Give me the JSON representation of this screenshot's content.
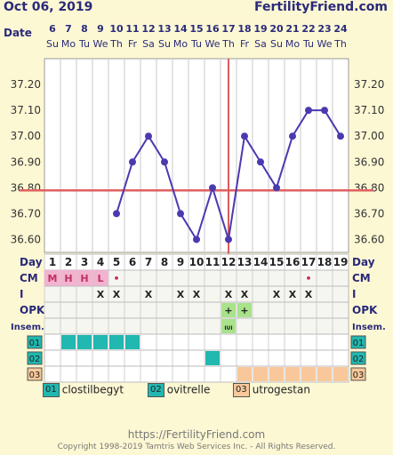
{
  "header": {
    "date": "Oct 06, 2019",
    "site": "FertilityFriend.com"
  },
  "labels": {
    "date": "Date",
    "day": "Day",
    "cm": "CM",
    "intercourse": "I",
    "opk": "OPK",
    "insem": "Insem."
  },
  "colors": {
    "line": "#4a3ab0",
    "coverline": "#e06060",
    "ovulation": "#d95c5c",
    "cm_fill": "#f2b3cf",
    "opk_fill": "#a8e28a",
    "med1": "#20b8b0",
    "med2": "#20b8b0",
    "med3": "#f8c89a"
  },
  "chart_data": {
    "type": "line",
    "dates": [
      "6",
      "7",
      "8",
      "9",
      "10",
      "11",
      "12",
      "13",
      "14",
      "15",
      "16",
      "17",
      "18",
      "19",
      "20",
      "21",
      "22",
      "23",
      "24"
    ],
    "weekdays": [
      "Su",
      "Mo",
      "Tu",
      "We",
      "Th",
      "Fr",
      "Sa",
      "Su",
      "Mo",
      "Tu",
      "We",
      "Th",
      "Fr",
      "Sa",
      "Su",
      "Mo",
      "Tu",
      "We",
      "Th"
    ],
    "days": [
      "1",
      "2",
      "3",
      "4",
      "5",
      "6",
      "7",
      "8",
      "9",
      "10",
      "11",
      "12",
      "13",
      "14",
      "15",
      "16",
      "17",
      "18",
      "19"
    ],
    "temps": [
      null,
      null,
      null,
      null,
      36.7,
      36.9,
      37.0,
      36.9,
      36.7,
      36.6,
      36.8,
      36.6,
      37.0,
      36.9,
      36.8,
      37.0,
      37.1,
      37.1,
      37.0
    ],
    "y_ticks": [
      "37.20",
      "37.10",
      "37.00",
      "36.90",
      "36.80",
      "36.70",
      "36.60"
    ],
    "ylim": [
      36.55,
      37.3
    ],
    "coverline": 36.79,
    "ovulation_day": 12,
    "cm": [
      "M",
      "H",
      "H",
      "L",
      "•",
      "",
      "",
      "",
      "",
      "",
      "",
      "",
      "",
      "",
      "",
      "",
      "•",
      "",
      ""
    ],
    "intercourse": [
      "",
      "",
      "",
      "X",
      "X",
      "",
      "X",
      "",
      "X",
      "X",
      "",
      "X",
      "X",
      "",
      "X",
      "X",
      "X",
      "",
      ""
    ],
    "opk": [
      "",
      "",
      "",
      "",
      "",
      "",
      "",
      "",
      "",
      "",
      "",
      "+",
      "+",
      "",
      "",
      "",
      "",
      "",
      ""
    ],
    "insem": [
      "",
      "",
      "",
      "",
      "",
      "",
      "",
      "",
      "",
      "",
      "",
      "IUI",
      "",
      "",
      "",
      "",
      "",
      "",
      ""
    ],
    "med_rows": [
      {
        "code": "01",
        "days": [
          2,
          3,
          4,
          5,
          6
        ]
      },
      {
        "code": "02",
        "days": [
          11
        ]
      },
      {
        "code": "03",
        "days": [
          13,
          14,
          15,
          16,
          17,
          18,
          19
        ]
      }
    ]
  },
  "legend": [
    {
      "code": "01",
      "name": "clostilbegyt"
    },
    {
      "code": "02",
      "name": "ovitrelle"
    },
    {
      "code": "03",
      "name": "utrogestan"
    }
  ],
  "footer": {
    "url": "https://FertilityFriend.com",
    "copyright": "Copyright 1998-2019 Tamtris Web Services Inc. - All Rights Reserved."
  }
}
